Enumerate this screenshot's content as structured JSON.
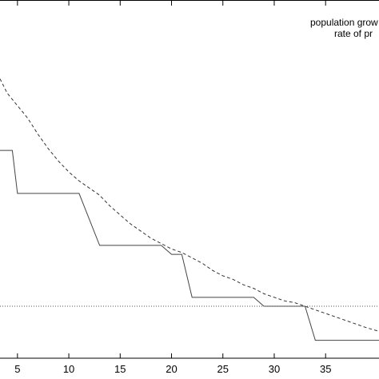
{
  "chart_data": {
    "type": "line",
    "xlim": [
      3.3,
      40.2
    ],
    "ylim": [
      0,
      100
    ],
    "x_ticks": [
      5,
      10,
      15,
      20,
      25,
      30,
      35
    ],
    "x_tick_labels": [
      "5",
      "10",
      "15",
      "20",
      "25",
      "30",
      "35"
    ],
    "grid": false,
    "legend_position": "top-right",
    "series": [
      {
        "name": "population grow",
        "style": "dashed",
        "color": "#333333",
        "x": [
          3.3,
          4,
          5,
          6,
          7,
          8,
          9,
          10,
          11,
          12,
          13,
          14,
          15,
          16,
          17,
          18,
          19,
          20,
          21,
          22,
          23,
          24,
          25,
          26,
          27,
          28,
          29,
          30,
          31,
          32,
          33,
          34,
          35,
          36,
          37,
          38,
          39,
          40.2
        ],
        "y": [
          78,
          74,
          70.5,
          67,
          62.5,
          58.5,
          55,
          52,
          49.5,
          47.5,
          45.5,
          42.5,
          40,
          37.5,
          35.5,
          33.5,
          32,
          30.5,
          29.5,
          28,
          26.5,
          24.5,
          23,
          22,
          20.5,
          19.5,
          18,
          17,
          16,
          15.5,
          14.5,
          13.5,
          12.5,
          11.5,
          10.5,
          9.5,
          8.5,
          7.5
        ]
      },
      {
        "name": "rate of pr",
        "style": "solid",
        "color": "#444444",
        "x": [
          3.3,
          4.5,
          5,
          10,
          11,
          13,
          19,
          20,
          21,
          22,
          23,
          28,
          29,
          33,
          34,
          40.2
        ],
        "y": [
          58,
          58,
          46,
          46,
          46,
          31.5,
          31.5,
          29,
          29,
          17,
          17,
          17,
          14.5,
          14.5,
          5,
          5
        ]
      },
      {
        "name": "",
        "style": "dotted",
        "color": "#555555",
        "x": [
          3.3,
          40.2
        ],
        "y": [
          14.5,
          14.5
        ]
      }
    ]
  }
}
